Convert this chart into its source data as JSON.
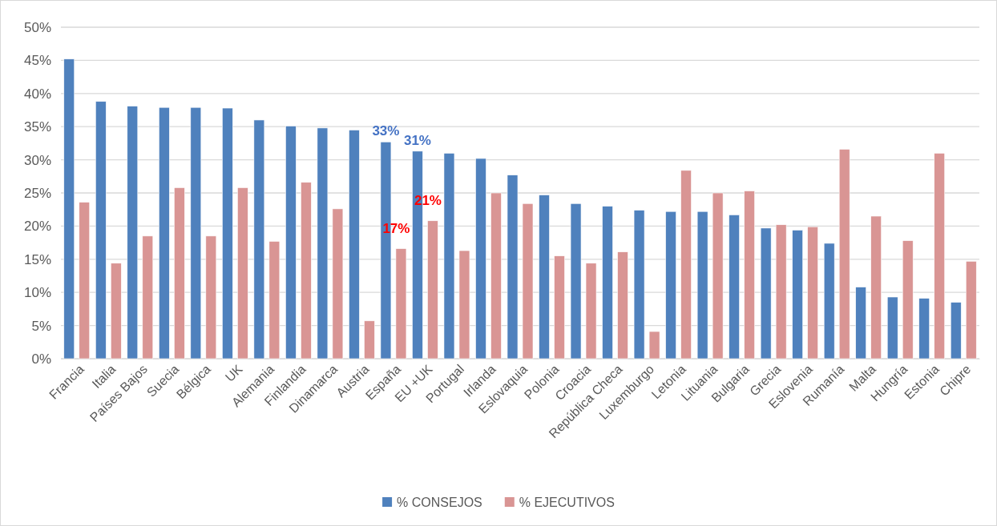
{
  "chart_data": {
    "type": "bar",
    "categories": [
      "Francia",
      "Italia",
      "Países Bajos",
      "Suecia",
      "Bélgica",
      "UK",
      "Alemania",
      "Finlandia",
      "Dinamarca",
      "Austria",
      "España",
      "EU +UK",
      "Portugal",
      "Irlanda",
      "Eslovaquia",
      "Polonia",
      "Croacia",
      "República Checa",
      "Luxemburgo",
      "Letonia",
      "Lituania",
      "Bulgaria",
      "Grecia",
      "Eslovenia",
      "Rumanía",
      "Malta",
      "Hungría",
      "Estonia",
      "Chipre"
    ],
    "series": [
      {
        "name": "% CONSEJOS",
        "color": "#4f81bd",
        "values": [
          45.2,
          38.8,
          38.1,
          37.9,
          37.9,
          37.8,
          36.0,
          35.1,
          34.8,
          34.5,
          32.7,
          31.3,
          31.0,
          30.2,
          27.7,
          24.7,
          23.4,
          23.0,
          22.4,
          22.2,
          22.2,
          21.7,
          19.7,
          19.4,
          17.4,
          10.8,
          9.3,
          9.1,
          8.5
        ],
        "value_labels": [
          null,
          null,
          null,
          null,
          null,
          null,
          null,
          null,
          null,
          null,
          "33%",
          "31%",
          null,
          null,
          null,
          null,
          null,
          null,
          null,
          null,
          null,
          null,
          null,
          null,
          null,
          null,
          null,
          null,
          null
        ]
      },
      {
        "name": "% EJECUTIVOS",
        "color": "#d99594",
        "values": [
          23.6,
          14.4,
          18.5,
          25.8,
          18.5,
          25.8,
          17.7,
          26.6,
          22.6,
          5.7,
          16.6,
          20.8,
          16.3,
          25.0,
          23.4,
          15.5,
          14.4,
          16.1,
          4.1,
          28.4,
          25.0,
          25.3,
          20.2,
          19.9,
          31.6,
          21.5,
          17.8,
          31.0,
          14.7
        ],
        "value_labels": [
          null,
          null,
          null,
          null,
          null,
          null,
          null,
          null,
          null,
          null,
          "17%",
          "21%",
          null,
          null,
          null,
          null,
          null,
          null,
          null,
          null,
          null,
          null,
          null,
          null,
          null,
          null,
          null,
          null,
          null
        ]
      }
    ],
    "ylim": [
      0,
      50
    ],
    "yticks": [
      {
        "value": 0,
        "label": "0%"
      },
      {
        "value": 5,
        "label": "5%"
      },
      {
        "value": 10,
        "label": "10%"
      },
      {
        "value": 15,
        "label": "15%"
      },
      {
        "value": 20,
        "label": "20%"
      },
      {
        "value": 25,
        "label": "25%"
      },
      {
        "value": 30,
        "label": "30%"
      },
      {
        "value": 35,
        "label": "35%"
      },
      {
        "value": 40,
        "label": "40%"
      },
      {
        "value": 45,
        "label": "45%"
      },
      {
        "value": 50,
        "label": "50%"
      }
    ],
    "grid": "y",
    "legend": "bottom"
  }
}
